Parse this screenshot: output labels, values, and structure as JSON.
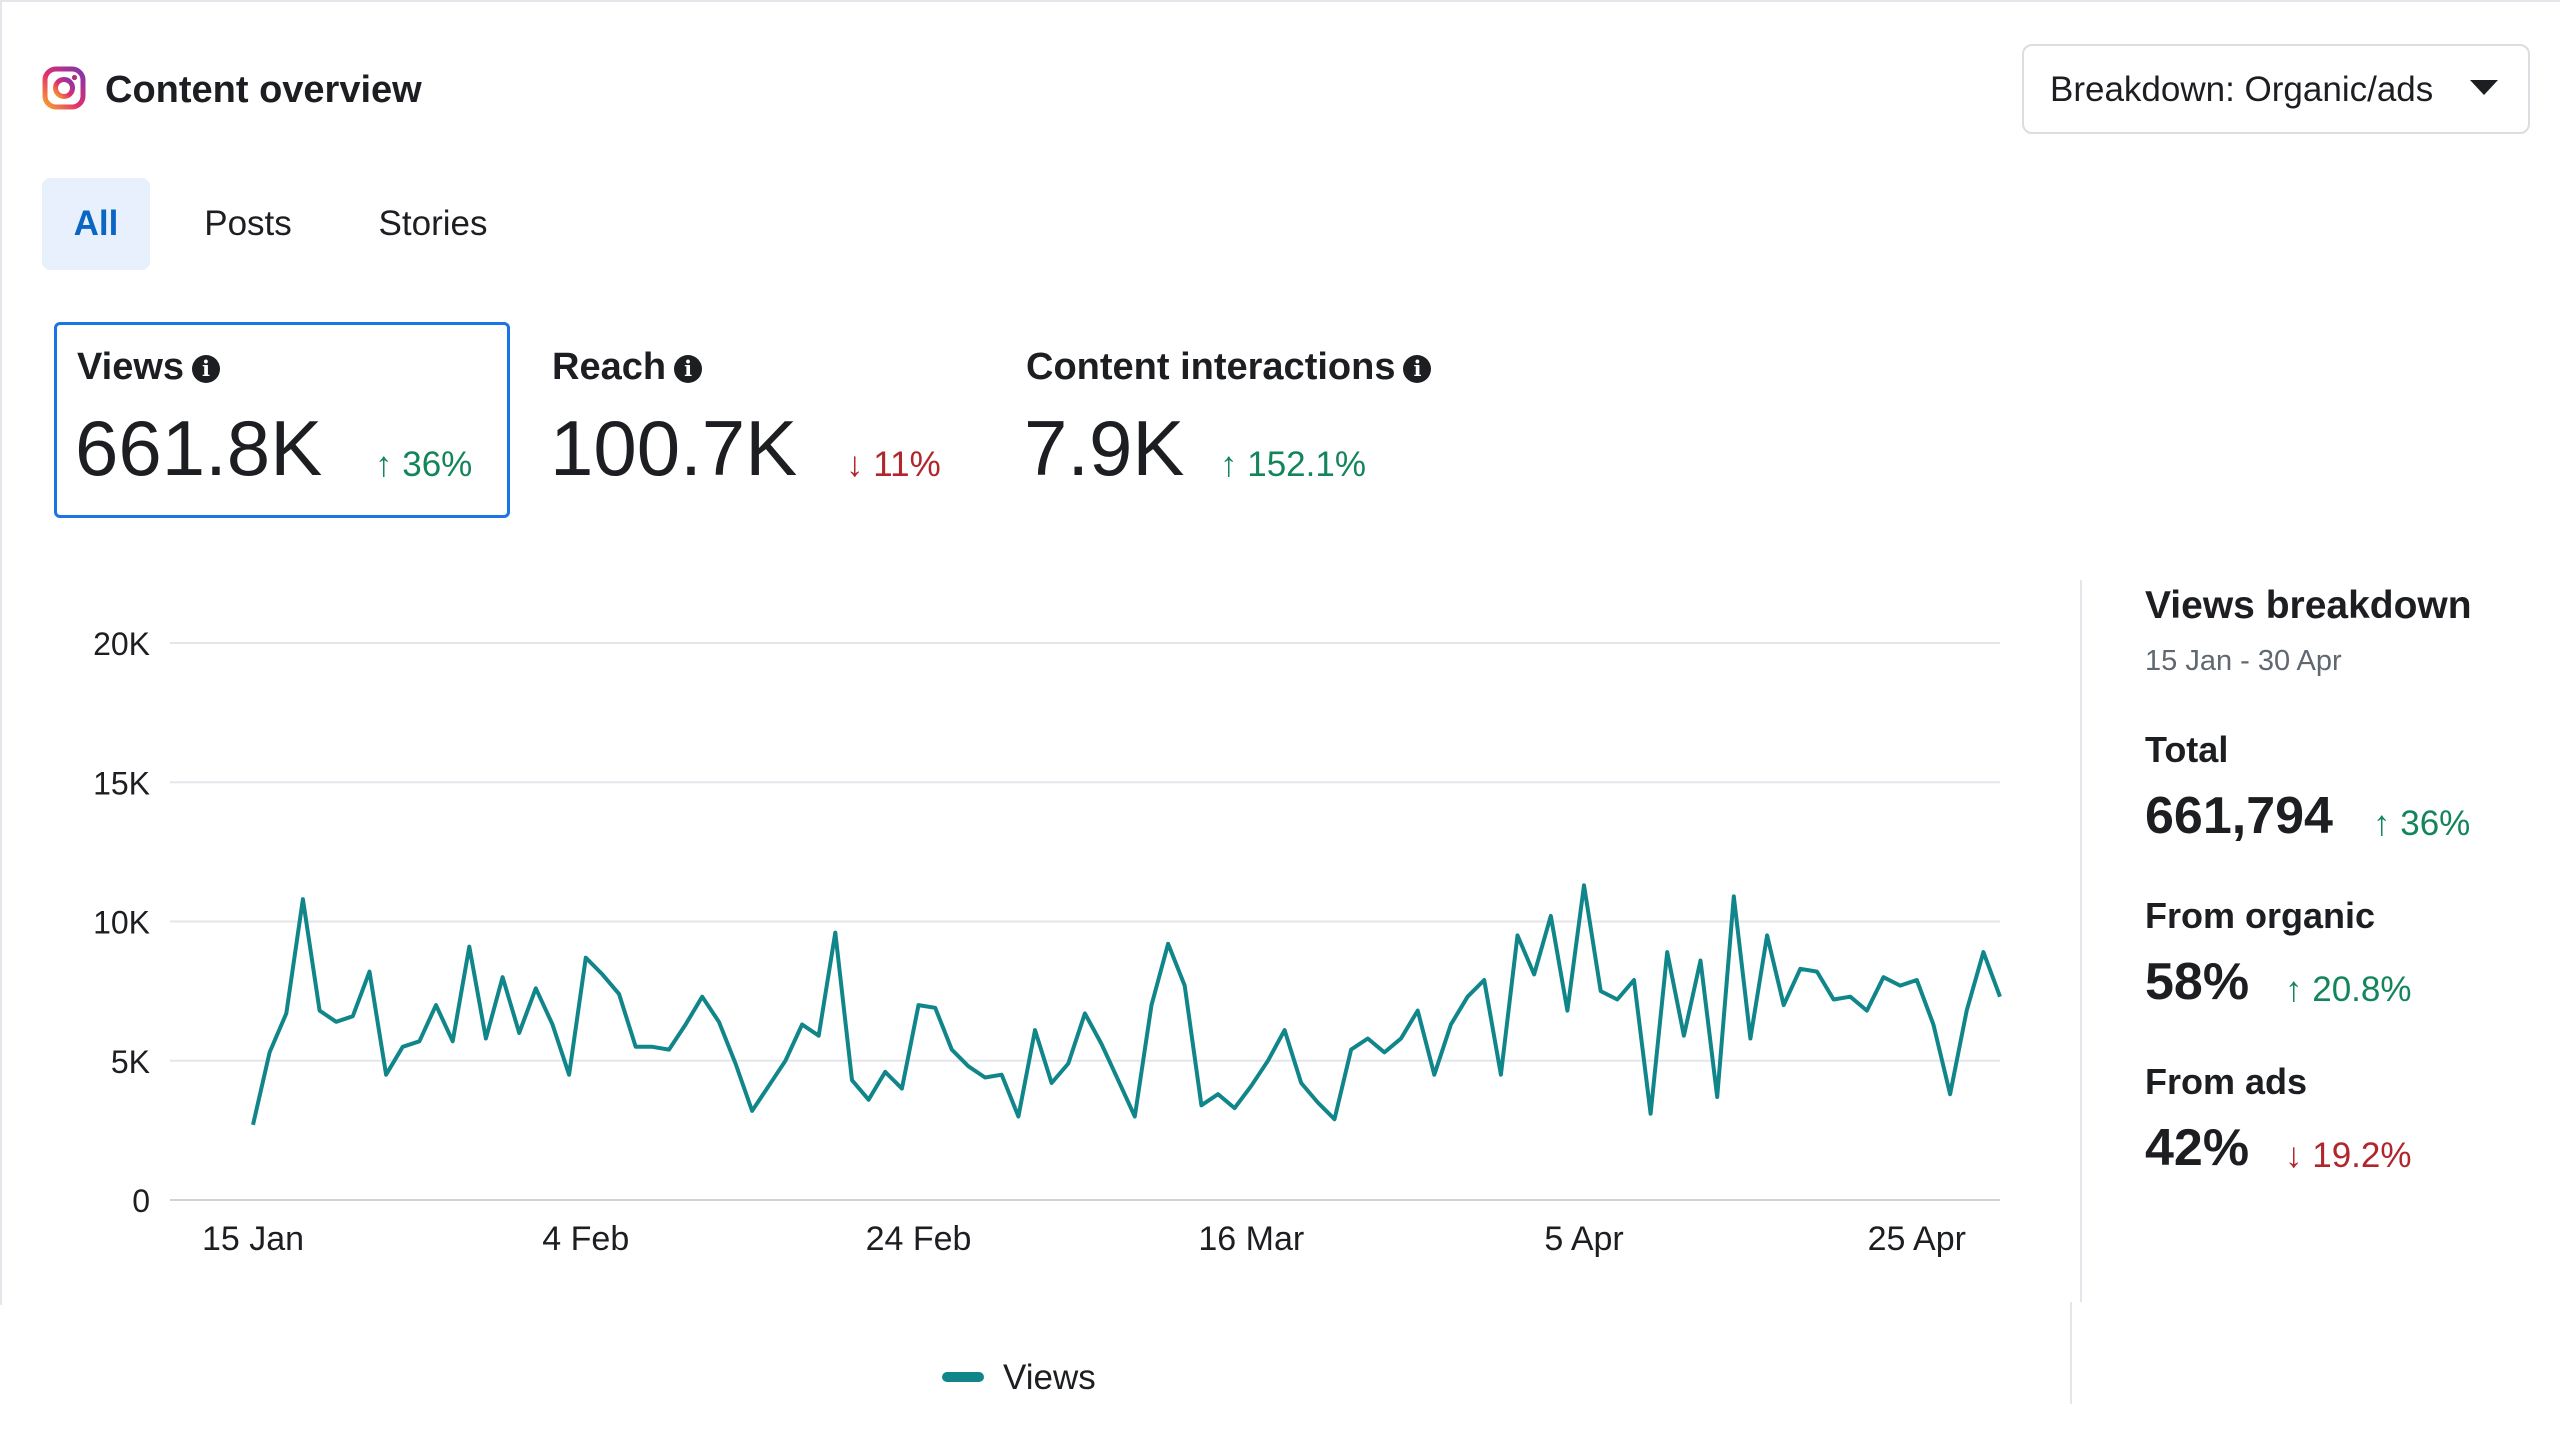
{
  "header": {
    "title": "Content overview",
    "breakdown_label": "Breakdown: Organic/ads"
  },
  "tabs": [
    {
      "label": "All",
      "active": true
    },
    {
      "label": "Posts",
      "active": false
    },
    {
      "label": "Stories",
      "active": false
    }
  ],
  "metrics": [
    {
      "label": "Views",
      "value": "661.8K",
      "change": "36%",
      "direction": "up",
      "selected": true
    },
    {
      "label": "Reach",
      "value": "100.7K",
      "change": "11%",
      "direction": "down",
      "selected": false
    },
    {
      "label": "Content interactions",
      "value": "7.9K",
      "change": "152.1%",
      "direction": "up",
      "selected": false
    }
  ],
  "breakdown_panel": {
    "title": "Views breakdown",
    "date_range": "15 Jan - 30 Apr",
    "total": {
      "label": "Total",
      "value": "661,794",
      "change": "36%",
      "direction": "up"
    },
    "organic": {
      "label": "From organic",
      "value": "58%",
      "change": "20.8%",
      "direction": "up"
    },
    "ads": {
      "label": "From ads",
      "value": "42%",
      "change": "19.2%",
      "direction": "down"
    }
  },
  "legend": {
    "label": "Views"
  },
  "colors": {
    "series": "#11868a",
    "up": "#14855b",
    "down": "#b0262c",
    "accent": "#1b74e4"
  },
  "icons": {
    "app": "instagram-icon",
    "info": "info-icon",
    "up": "arrow-up-icon",
    "down": "arrow-down-icon",
    "dropdown": "caret-down-icon"
  },
  "chart_data": {
    "type": "line",
    "x_start": "15 Jan",
    "x_end": "30 Apr",
    "xticks": [
      "15 Jan",
      "4 Feb",
      "24 Feb",
      "16 Mar",
      "5 Apr",
      "25 Apr"
    ],
    "yticks": [
      "0",
      "5K",
      "10K",
      "15K",
      "20K"
    ],
    "ylim": [
      0,
      20000
    ],
    "grid": true,
    "legend_position": "bottom-center",
    "series": [
      {
        "name": "Views",
        "values": [
          2700,
          5300,
          6700,
          10800,
          6800,
          6400,
          6600,
          8200,
          4500,
          5500,
          5700,
          7000,
          5700,
          9100,
          5800,
          8000,
          6000,
          7600,
          6300,
          4500,
          8700,
          8100,
          7400,
          5500,
          5500,
          5400,
          6300,
          7300,
          6400,
          4900,
          3200,
          4100,
          5000,
          6300,
          5900,
          9600,
          4300,
          3600,
          4600,
          4000,
          7000,
          6900,
          5400,
          4800,
          4400,
          4500,
          3000,
          6100,
          4200,
          4900,
          6700,
          5600,
          4300,
          3000,
          7000,
          9200,
          7700,
          3400,
          3800,
          3300,
          4100,
          5000,
          6100,
          4200,
          3500,
          2900,
          5400,
          5800,
          5300,
          5800,
          6800,
          4500,
          6300,
          7300,
          7900,
          4500,
          9500,
          8100,
          10200,
          6800,
          11300,
          7500,
          7200,
          7900,
          3100,
          8900,
          5900,
          8600,
          3700,
          10900,
          5800,
          9500,
          7000,
          8300,
          8200,
          7200,
          7300,
          6800,
          8000,
          7700,
          7900,
          6300,
          3800,
          6800,
          8900,
          7300
        ]
      }
    ]
  }
}
